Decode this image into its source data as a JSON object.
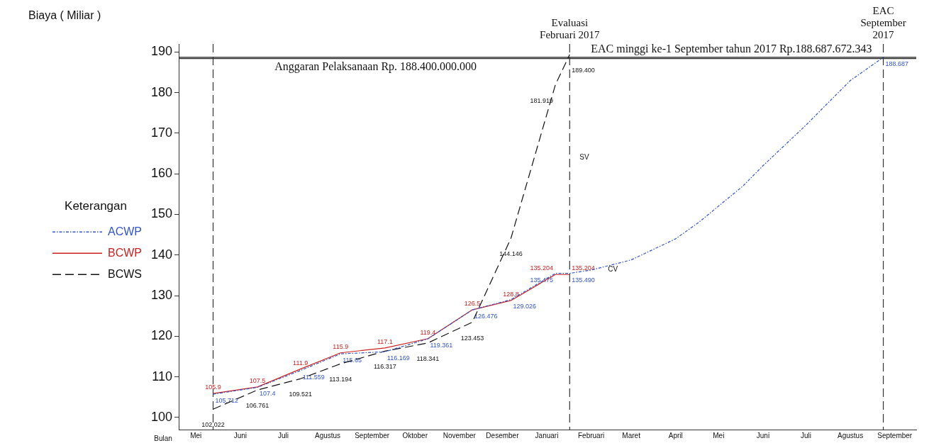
{
  "chart_data": {
    "type": "line",
    "ylabel": "Biaya ( Miliar )",
    "xlabel": "Bulan",
    "xlim": [
      "2016-05-03",
      "2017-09-30"
    ],
    "xticks": [
      {
        "value": "2016-05-15",
        "label": "Mei"
      },
      {
        "value": "2016-06-15",
        "label": "Juni"
      },
      {
        "value": "2016-07-15",
        "label": "Juli"
      },
      {
        "value": "2016-08-15",
        "label": "Agustus"
      },
      {
        "value": "2016-09-15",
        "label": "September"
      },
      {
        "value": "2016-10-15",
        "label": "Oktober"
      },
      {
        "value": "2016-11-15",
        "label": "November"
      },
      {
        "value": "2016-12-15",
        "label": "Desember"
      },
      {
        "value": "2017-01-15",
        "label": "Januari"
      },
      {
        "value": "2017-02-15",
        "label": "Februari"
      },
      {
        "value": "2017-03-15",
        "label": "Maret"
      },
      {
        "value": "2017-04-15",
        "label": "April"
      },
      {
        "value": "2017-05-15",
        "label": "Mei"
      },
      {
        "value": "2017-06-15",
        "label": "Juni"
      },
      {
        "value": "2017-07-15",
        "label": "Juli"
      },
      {
        "value": "2017-08-15",
        "label": "Agustus"
      },
      {
        "value": "2017-09-15",
        "label": "September"
      }
    ],
    "ylim": [
      97,
      192
    ],
    "yticks": [
      100,
      110,
      120,
      130,
      140,
      150,
      160,
      170,
      180,
      190
    ],
    "grid": false,
    "legend": "left",
    "legend_title": "Keterangan",
    "marker": "none",
    "series": [
      {
        "name": "ACWP",
        "color": "#3355cc",
        "line_style": "dashdot",
        "x": [
          "2016-05-27",
          "2016-06-27",
          "2016-07-27",
          "2016-08-24",
          "2016-09-24",
          "2016-10-24",
          "2016-11-24",
          "2016-12-21",
          "2017-01-21",
          "2017-01-31",
          "2017-02-15",
          "2017-03-15",
          "2017-04-15",
          "2017-05-01",
          "2017-06-01",
          "2017-06-15",
          "2017-07-15",
          "2017-08-15",
          "2017-09-07"
        ],
        "values": [
          105.712,
          107.4,
          111.559,
          115.65,
          116.169,
          119.361,
          126.476,
          129.026,
          135.475,
          135.49,
          136.3,
          138.8,
          144,
          148,
          157,
          162,
          172,
          183,
          188.687
        ],
        "value_labels": [
          "105.712",
          "107.4",
          "111.559",
          "115.65",
          "116.169",
          "119.361",
          "126.476",
          "129.026",
          "135.475",
          "135.490",
          null,
          null,
          null,
          null,
          null,
          null,
          null,
          null,
          "188.687"
        ]
      },
      {
        "name": "BCWP",
        "color": "#cc2222",
        "line_style": "solid",
        "x": [
          "2016-05-27",
          "2016-06-27",
          "2016-07-27",
          "2016-08-24",
          "2016-09-24",
          "2016-10-24",
          "2016-11-24",
          "2016-12-21",
          "2017-01-21",
          "2017-01-31"
        ],
        "values": [
          105.9,
          107.5,
          111.9,
          115.9,
          117.1,
          119.4,
          126.5,
          128.8,
          135.204,
          135.204
        ],
        "value_labels": [
          "105.9",
          "107.5",
          "111.9",
          "115.9",
          "117.1",
          "119.4",
          "126.5",
          "128.8",
          "135.204",
          "135.204"
        ]
      },
      {
        "name": "BCWS",
        "color": "#111111",
        "line_style": "dashed",
        "x": [
          "2016-05-27",
          "2016-06-27",
          "2016-07-27",
          "2016-08-24",
          "2016-09-24",
          "2016-10-24",
          "2016-11-24",
          "2016-12-21",
          "2017-01-21",
          "2017-01-31"
        ],
        "values": [
          102.022,
          106.761,
          109.521,
          113.194,
          116.317,
          118.341,
          123.453,
          144.146,
          181.919,
          189.4
        ],
        "value_labels": [
          "102.022",
          "106.761",
          "109.521",
          "113.194",
          "116.317",
          "118.341",
          "123.453",
          "144.146",
          "181.919",
          "189.400"
        ]
      }
    ],
    "ref_lines": [
      {
        "axis": "y",
        "value": 188.4,
        "label": "Anggaran Pelaksanaan Rp. 188.400.000.000",
        "color": "#333333",
        "line_style": "solid"
      },
      {
        "axis": "y",
        "value": 188.687,
        "label": "EAC minggi ke-1 September tahun 2017 Rp.188.687.672.343",
        "color": "#111111",
        "line_style": "solid"
      },
      {
        "axis": "x",
        "value": "2016-05-27",
        "label": null,
        "color": "#333333",
        "line_style": "dashed"
      },
      {
        "axis": "x",
        "value": "2017-01-31",
        "label": "Evaluasi\nFebruari 2017",
        "color": "#333333",
        "line_style": "dashed"
      },
      {
        "axis": "x",
        "value": "2017-09-07",
        "label": "EAC\nSeptember\n2017",
        "color": "#333333",
        "line_style": "dashed"
      }
    ],
    "annotations": [
      "SV",
      "CV"
    ]
  }
}
